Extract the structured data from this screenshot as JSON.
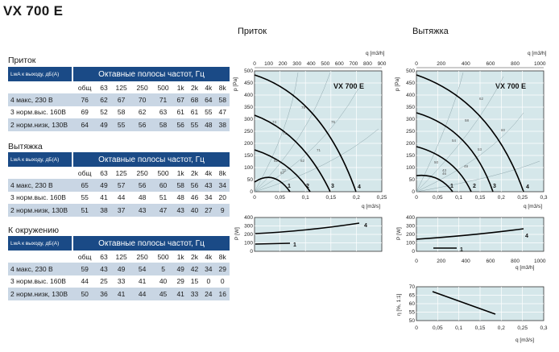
{
  "title": "VX 700 E",
  "tables": [
    {
      "title": "Приток",
      "col_label": "LwA к выходу, дБ(A)",
      "header": "Октавные полосы частот, Гц",
      "bands": [
        "общ",
        "63",
        "125",
        "250",
        "500",
        "1k",
        "2k",
        "4k",
        "8k"
      ],
      "rows": [
        {
          "label": "4 макс, 230 В",
          "values": [
            "76",
            "62",
            "67",
            "70",
            "71",
            "67",
            "68",
            "64",
            "58"
          ]
        },
        {
          "label": "3 норм.выс. 160В",
          "values": [
            "69",
            "52",
            "58",
            "62",
            "63",
            "61",
            "61",
            "55",
            "47"
          ]
        },
        {
          "label": "2 норм.низк, 130В",
          "values": [
            "64",
            "49",
            "55",
            "56",
            "58",
            "56",
            "55",
            "48",
            "38"
          ]
        }
      ]
    },
    {
      "title": "Вытяжка",
      "col_label": "LwA к выходу, дБ(A)",
      "header": "Октавные полосы частот, Гц",
      "bands": [
        "общ",
        "63",
        "125",
        "250",
        "500",
        "1k",
        "2k",
        "4k",
        "8k"
      ],
      "rows": [
        {
          "label": "4 макс, 230 В",
          "values": [
            "65",
            "49",
            "57",
            "56",
            "60",
            "58",
            "56",
            "43",
            "34"
          ]
        },
        {
          "label": "3 норм.выс. 160В",
          "values": [
            "55",
            "41",
            "44",
            "48",
            "51",
            "48",
            "46",
            "34",
            "20"
          ]
        },
        {
          "label": "2 норм.низк, 130В",
          "values": [
            "51",
            "38",
            "37",
            "43",
            "47",
            "43",
            "40",
            "27",
            "9"
          ]
        }
      ]
    },
    {
      "title": "К окружению",
      "col_label": "LwA к выходу, дБ(A)",
      "header": "Октавные полосы частот, Гц",
      "bands": [
        "общ",
        "63",
        "125",
        "250",
        "500",
        "1k",
        "2k",
        "4k",
        "8k"
      ],
      "rows": [
        {
          "label": "4 макс, 230 В",
          "values": [
            "59",
            "43",
            "49",
            "54",
            "5",
            "49",
            "42",
            "34",
            "29"
          ]
        },
        {
          "label": "3 норм.выс. 160В",
          "values": [
            "44",
            "25",
            "33",
            "41",
            "40",
            "29",
            "15",
            "0",
            "0"
          ]
        },
        {
          "label": "2 норм.низк, 130В",
          "values": [
            "50",
            "36",
            "41",
            "44",
            "45",
            "41",
            "33",
            "24",
            "16"
          ]
        }
      ]
    }
  ],
  "charts": {
    "supply": {
      "title": "Приток",
      "model": "VX 700 E",
      "q_m3h": {
        "label": "m3/h",
        "ticks": [
          "0",
          "100",
          "200",
          "300",
          "400",
          "500",
          "600",
          "700",
          "800",
          "900"
        ]
      },
      "q_m3s": {
        "ticks": [
          "0",
          "0,05",
          "0,1",
          "0,15",
          "0,2",
          "0,25"
        ]
      },
      "p_pa": {
        "ticks": [
          "0",
          "50",
          "100",
          "150",
          "200",
          "250",
          "300",
          "350",
          "400",
          "450",
          "500"
        ]
      },
      "power_w": {
        "ticks": [
          "0",
          "100",
          "200",
          "300",
          "400"
        ]
      },
      "curve_labels": [
        "1",
        "2",
        "3",
        "4"
      ],
      "efficiency_marks": [
        "79",
        "74",
        "71",
        "71",
        "62",
        "62",
        "67",
        "72",
        "75"
      ]
    },
    "exhaust": {
      "title": "Вытяжка",
      "model": "VX 700 E",
      "q_m3h": {
        "label": "m3/h",
        "ticks": [
          "0",
          "200",
          "400",
          "600",
          "800",
          "1000"
        ]
      },
      "q_m3s": {
        "ticks": [
          "0",
          "0,05",
          "0,1",
          "0,15",
          "0,2",
          "0,25",
          "0,3"
        ]
      },
      "p_pa": {
        "ticks": [
          "0",
          "50",
          "100",
          "150",
          "200",
          "250",
          "300",
          "350",
          "400",
          "450",
          "500"
        ]
      },
      "power_w": {
        "ticks": [
          "0",
          "100",
          "200",
          "300",
          "400"
        ]
      },
      "curve_labels": [
        "1",
        "2",
        "3",
        "4"
      ],
      "efficiency_marks": [
        "62",
        "58",
        "54",
        "53",
        "50",
        "49",
        "46",
        "43",
        "60"
      ],
      "eta": {
        "ticks": [
          "50",
          "55",
          "60",
          "65",
          "70"
        ],
        "x_ticks": [
          "0",
          "0,05",
          "0,1",
          "0,15",
          "0,2",
          "0,25",
          "0,3"
        ],
        "q_m3h_ticks": [
          "0",
          "200",
          "400",
          "600",
          "800",
          "1000"
        ]
      }
    }
  },
  "axis": {
    "qv": "q",
    "v_sub": "v",
    "p_label": "p",
    "s_sub": "s",
    "pa": "[Pa]",
    "w_label": "P [W]",
    "eta_label": "η [%, 1:1]",
    "m3h": "[m3/h]",
    "m3s": "[m3/s]"
  }
}
